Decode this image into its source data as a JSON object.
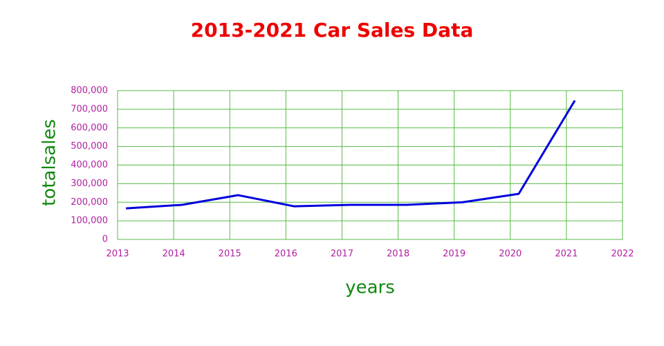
{
  "chart_data": {
    "type": "line",
    "title": "2013-2021 Car Sales Data",
    "x_label": "years",
    "y_label": "totalsales",
    "x": [
      2013.15,
      2014.15,
      2015.15,
      2016.15,
      2017.15,
      2018.15,
      2019.15,
      2020.15,
      2021.15
    ],
    "series": [
      {
        "name": "totalsales",
        "color": "#0000dd",
        "values": [
          167000,
          186000,
          238000,
          178000,
          186000,
          186000,
          200000,
          245000,
          747000
        ]
      }
    ],
    "xlim": [
      2013,
      2022
    ],
    "xticks": [
      2013,
      2014,
      2015,
      2016,
      2017,
      2018,
      2019,
      2020,
      2021,
      2022
    ],
    "ylim": [
      0,
      800000
    ],
    "yticks": [
      0,
      {
        "value": 100000,
        "label": "100,000"
      },
      {
        "value": 200000,
        "label": "200,000"
      },
      {
        "value": 300000,
        "label": "300,000"
      },
      {
        "value": 400000,
        "label": "400,000"
      },
      {
        "value": 500000,
        "label": "500,000"
      },
      {
        "value": 600000,
        "label": "600,000"
      },
      {
        "value": 700000,
        "label": "700,000"
      },
      {
        "value": 800000,
        "label": "800,000"
      }
    ],
    "grid": true
  }
}
